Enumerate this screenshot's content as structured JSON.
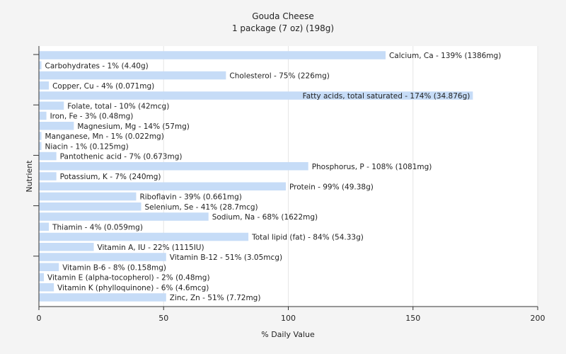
{
  "chart_data": {
    "type": "bar",
    "orientation": "horizontal",
    "title": "Gouda Cheese",
    "subtitle": "1 package (7 oz) (198g)",
    "xlabel": "% Daily Value",
    "ylabel": "Nutrient",
    "xlim": [
      0,
      200
    ],
    "xticks": [
      0,
      50,
      100,
      150,
      200
    ],
    "grid": true,
    "bar_color": "#c6dcf7",
    "background": "#f4f4f4",
    "plot_background": "#ffffff",
    "bars": [
      {
        "value": 139,
        "label": "Calcium, Ca - 139% (1386mg)"
      },
      {
        "value": 1,
        "label": "Carbohydrates - 1% (4.40g)"
      },
      {
        "value": 75,
        "label": "Cholesterol - 75% (226mg)"
      },
      {
        "value": 4,
        "label": "Copper, Cu - 4% (0.071mg)"
      },
      {
        "value": 174,
        "label": "Fatty acids, total saturated - 174% (34.876g)"
      },
      {
        "value": 10,
        "label": "Folate, total - 10% (42mcg)"
      },
      {
        "value": 3,
        "label": "Iron, Fe - 3% (0.48mg)"
      },
      {
        "value": 14,
        "label": "Magnesium, Mg - 14% (57mg)"
      },
      {
        "value": 1,
        "label": "Manganese, Mn - 1% (0.022mg)"
      },
      {
        "value": 1,
        "label": "Niacin - 1% (0.125mg)"
      },
      {
        "value": 7,
        "label": "Pantothenic acid - 7% (0.673mg)"
      },
      {
        "value": 108,
        "label": "Phosphorus, P - 108% (1081mg)"
      },
      {
        "value": 7,
        "label": "Potassium, K - 7% (240mg)"
      },
      {
        "value": 99,
        "label": "Protein - 99% (49.38g)"
      },
      {
        "value": 39,
        "label": "Riboflavin - 39% (0.661mg)"
      },
      {
        "value": 41,
        "label": "Selenium, Se - 41% (28.7mcg)"
      },
      {
        "value": 68,
        "label": "Sodium, Na - 68% (1622mg)"
      },
      {
        "value": 4,
        "label": "Thiamin - 4% (0.059mg)"
      },
      {
        "value": 84,
        "label": "Total lipid (fat) - 84% (54.33g)"
      },
      {
        "value": 22,
        "label": "Vitamin A, IU - 22% (1115IU)"
      },
      {
        "value": 51,
        "label": "Vitamin B-12 - 51% (3.05mcg)"
      },
      {
        "value": 8,
        "label": "Vitamin B-6 - 8% (0.158mg)"
      },
      {
        "value": 2,
        "label": "Vitamin E (alpha-tocopherol) - 2% (0.48mg)"
      },
      {
        "value": 6,
        "label": "Vitamin K (phylloquinone) - 6% (4.6mcg)"
      },
      {
        "value": 51,
        "label": "Zinc, Zn - 51% (7.72mg)"
      }
    ]
  }
}
